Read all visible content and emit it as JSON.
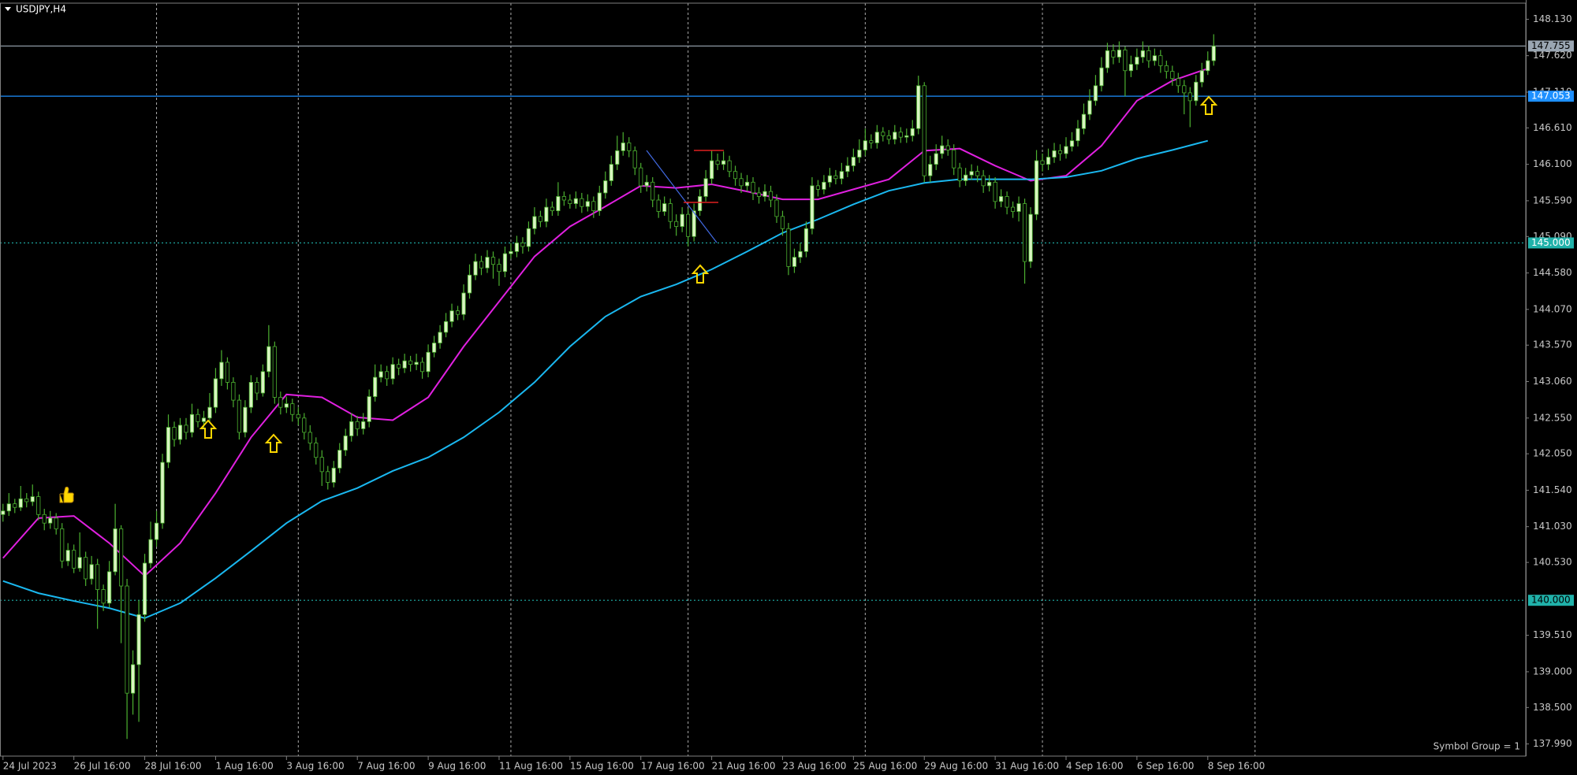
{
  "chart_data": {
    "type": "candlestick",
    "title": "USDJPY,H4",
    "footer": "Symbol Group = 1",
    "up_color": "#d8f5c0",
    "down_color": "#000000",
    "wick_color": "#4cb030",
    "ylim": [
      137.82,
      148.355
    ],
    "yticks": [
      {
        "value": 148.13,
        "label": "148.130"
      },
      {
        "value": 147.62,
        "label": "147.620"
      },
      {
        "value": 147.11,
        "label": "147.110"
      },
      {
        "value": 146.61,
        "label": "146.610"
      },
      {
        "value": 146.1,
        "label": "146.100"
      },
      {
        "value": 145.59,
        "label": "145.590"
      },
      {
        "value": 145.09,
        "label": "145.090"
      },
      {
        "value": 144.58,
        "label": "144.580"
      },
      {
        "value": 144.07,
        "label": "144.070"
      },
      {
        "value": 143.57,
        "label": "143.570"
      },
      {
        "value": 143.06,
        "label": "143.060"
      },
      {
        "value": 142.55,
        "label": "142.550"
      },
      {
        "value": 142.05,
        "label": "142.050"
      },
      {
        "value": 141.54,
        "label": "141.540"
      },
      {
        "value": 141.03,
        "label": "141.030"
      },
      {
        "value": 140.53,
        "label": "140.530"
      },
      {
        "value": 139.51,
        "label": "139.510"
      },
      {
        "value": 139,
        "label": "139.000"
      },
      {
        "value": 138.5,
        "label": "138.500"
      },
      {
        "value": 137.99,
        "label": "137.990"
      }
    ],
    "xticks": [
      {
        "value": 0,
        "label": "24 Jul 2023"
      },
      {
        "value": 12,
        "label": "26 Jul 16:00"
      },
      {
        "value": 24,
        "label": "28 Jul 16:00"
      },
      {
        "value": 36,
        "label": "1 Aug 16:00"
      },
      {
        "value": 48,
        "label": "3 Aug 16:00"
      },
      {
        "value": 60,
        "label": "7 Aug 16:00"
      },
      {
        "value": 72,
        "label": "9 Aug 16:00"
      },
      {
        "value": 84,
        "label": "11 Aug 16:00"
      },
      {
        "value": 96,
        "label": "15 Aug 16:00"
      },
      {
        "value": 108,
        "label": "17 Aug 16:00"
      },
      {
        "value": 120,
        "label": "21 Aug 16:00"
      },
      {
        "value": 132,
        "label": "23 Aug 16:00"
      },
      {
        "value": 144,
        "label": "25 Aug 16:00"
      },
      {
        "value": 156,
        "label": "29 Aug 16:00"
      },
      {
        "value": 168,
        "label": "31 Aug 16:00"
      },
      {
        "value": 180,
        "label": "4 Sep 16:00"
      },
      {
        "value": 192,
        "label": "6 Sep 16:00"
      },
      {
        "value": 204,
        "label": "8 Sep 16:00"
      }
    ],
    "xgrid": [
      26,
      50,
      86,
      116,
      146,
      176,
      212
    ],
    "levels": [
      {
        "value": 147.755,
        "color": "#9aa6b2",
        "style": "solid",
        "text_color": "#000000"
      },
      {
        "value": 147.053,
        "color": "#1e90ff",
        "style": "solid",
        "text_color": "#ffffff"
      },
      {
        "value": 145,
        "label": "145.000",
        "color": "#20b2aa",
        "style": "dotted",
        "text_color": "#ffffff"
      },
      {
        "value": 140,
        "label": "140.000",
        "color": "#20b2aa",
        "style": "dotted",
        "text_color": "#000000"
      }
    ],
    "open": [
      141.2,
      141.25,
      141.35,
      141.3,
      141.42,
      141.38,
      141.45,
      141.2,
      141.08,
      141.15,
      141.0,
      140.55,
      140.7,
      140.45,
      140.6,
      140.3,
      140.5,
      140.15,
      139.96,
      140.4,
      141.0,
      140.2,
      138.7,
      139.1,
      139.8,
      140.52,
      140.85,
      141.08,
      141.93,
      142.42,
      142.25,
      142.45,
      142.35,
      142.6,
      142.5,
      142.55,
      142.7,
      143.1,
      143.33,
      143.05,
      142.8,
      142.35,
      142.7,
      143.05,
      142.9,
      143.2,
      143.55,
      142.84,
      142.7,
      142.75,
      142.6,
      142.55,
      142.35,
      142.2,
      142.0,
      141.8,
      141.65,
      141.85,
      142.1,
      142.3,
      142.5,
      142.4,
      142.5,
      142.85,
      143.12,
      143.2,
      143.1,
      143.3,
      143.25,
      143.35,
      143.3,
      143.33,
      143.2,
      143.47,
      143.6,
      143.75,
      143.9,
      144.05,
      144.0,
      144.3,
      144.55,
      144.74,
      144.65,
      144.8,
      144.7,
      144.6,
      144.85,
      144.88,
      145.0,
      144.95,
      145.2,
      145.37,
      145.3,
      145.5,
      145.45,
      145.65,
      145.6,
      145.55,
      145.62,
      145.51,
      145.58,
      145.45,
      145.7,
      145.87,
      146.1,
      146.29,
      146.4,
      146.29,
      146.05,
      145.8,
      145.85,
      145.6,
      145.44,
      145.55,
      145.3,
      145.23,
      145.4,
      145.09,
      145.45,
      145.65,
      145.9,
      146.15,
      146.1,
      146.15,
      146.0,
      145.9,
      145.8,
      145.85,
      145.7,
      145.65,
      145.72,
      145.6,
      145.37,
      145.2,
      144.67,
      144.8,
      144.88,
      145.2,
      145.8,
      145.75,
      145.85,
      145.94,
      145.9,
      146.0,
      146.08,
      146.2,
      146.3,
      146.43,
      146.4,
      146.55,
      146.5,
      146.45,
      146.55,
      146.48,
      146.5,
      146.6,
      147.2,
      145.94,
      146.1,
      146.25,
      146.36,
      146.3,
      146.05,
      145.87,
      145.95,
      146.0,
      145.94,
      145.8,
      145.85,
      145.58,
      145.65,
      145.5,
      145.44,
      145.55,
      144.74,
      145.4,
      146.15,
      146.1,
      146.2,
      146.29,
      146.25,
      146.35,
      146.43,
      146.6,
      146.8,
      146.99,
      147.2,
      147.45,
      147.69,
      147.6,
      147.7,
      147.41,
      147.5,
      147.6,
      147.69,
      147.55,
      147.62,
      147.48,
      147.4,
      147.3,
      147.2,
      147.1,
      146.99,
      147.25,
      147.41,
      147.55
    ],
    "high": [
      141.35,
      141.5,
      141.42,
      141.6,
      141.5,
      141.62,
      141.52,
      141.28,
      141.25,
      141.22,
      141.08,
      140.8,
      140.78,
      140.95,
      140.68,
      140.62,
      140.58,
      140.22,
      140.55,
      141.35,
      141.05,
      140.3,
      139.3,
      140.0,
      140.65,
      141.1,
      141.25,
      142.05,
      142.6,
      142.5,
      142.55,
      142.55,
      142.75,
      142.68,
      142.65,
      142.9,
      143.25,
      143.5,
      143.4,
      143.12,
      142.88,
      142.8,
      143.15,
      143.12,
      143.3,
      143.85,
      143.62,
      142.92,
      142.85,
      142.82,
      142.7,
      142.62,
      142.45,
      142.28,
      142.1,
      141.88,
      141.95,
      142.2,
      142.4,
      142.62,
      142.58,
      142.62,
      142.95,
      143.3,
      143.3,
      143.28,
      143.4,
      143.38,
      143.45,
      143.42,
      143.45,
      143.4,
      143.58,
      143.7,
      143.85,
      144.02,
      144.15,
      144.12,
      144.42,
      144.7,
      144.85,
      144.82,
      144.9,
      144.88,
      144.78,
      144.95,
      145.0,
      145.1,
      145.08,
      145.3,
      145.5,
      145.45,
      145.62,
      145.58,
      145.85,
      145.72,
      145.68,
      145.72,
      145.7,
      145.68,
      145.65,
      145.8,
      146.0,
      146.22,
      146.5,
      146.55,
      146.48,
      146.35,
      146.12,
      145.95,
      145.92,
      145.68,
      145.65,
      145.62,
      145.4,
      145.5,
      145.48,
      145.55,
      145.75,
      146.02,
      146.3,
      146.25,
      146.28,
      146.22,
      146.08,
      145.98,
      145.95,
      145.92,
      145.78,
      145.82,
      145.8,
      145.68,
      145.45,
      145.28,
      144.92,
      145.0,
      145.3,
      145.92,
      145.88,
      145.95,
      146.05,
      146.02,
      146.12,
      146.2,
      146.32,
      146.45,
      146.6,
      146.52,
      146.65,
      146.62,
      146.58,
      146.65,
      146.62,
      146.6,
      146.72,
      147.34,
      147.25,
      146.22,
      146.38,
      146.5,
      146.45,
      146.38,
      146.12,
      146.05,
      146.1,
      146.08,
      146.02,
      145.95,
      145.92,
      145.75,
      145.72,
      145.58,
      145.65,
      145.62,
      145.5,
      146.3,
      146.25,
      146.32,
      146.4,
      146.38,
      146.48,
      146.55,
      146.72,
      146.95,
      147.15,
      147.35,
      147.6,
      147.8,
      147.78,
      147.82,
      147.75,
      147.62,
      147.72,
      147.82,
      147.76,
      147.72,
      147.7,
      147.55,
      147.48,
      147.38,
      147.28,
      147.18,
      147.35,
      147.52,
      147.68,
      147.92
    ],
    "low": [
      141.1,
      141.18,
      141.22,
      141.25,
      141.3,
      141.32,
      141.12,
      140.98,
      141.0,
      140.92,
      140.45,
      140.48,
      140.38,
      140.4,
      140.2,
      140.22,
      139.6,
      139.85,
      139.9,
      140.35,
      139.4,
      138.06,
      138.4,
      138.3,
      139.7,
      140.45,
      140.75,
      141.0,
      141.85,
      142.15,
      142.18,
      142.25,
      142.28,
      142.42,
      142.4,
      142.48,
      142.62,
      143.0,
      142.95,
      142.7,
      142.25,
      142.28,
      142.62,
      142.8,
      142.85,
      143.12,
      142.75,
      142.6,
      142.62,
      142.5,
      142.45,
      142.25,
      142.1,
      141.9,
      141.6,
      141.55,
      141.58,
      141.78,
      142.02,
      142.22,
      142.3,
      142.32,
      142.42,
      142.78,
      143.05,
      143.0,
      143.02,
      143.15,
      143.18,
      143.2,
      143.22,
      143.1,
      143.12,
      143.4,
      143.52,
      143.68,
      143.82,
      143.92,
      143.92,
      144.22,
      144.48,
      144.55,
      144.58,
      144.5,
      144.4,
      144.52,
      144.78,
      144.8,
      144.85,
      144.88,
      145.12,
      145.22,
      145.22,
      145.38,
      145.38,
      145.52,
      145.48,
      145.48,
      145.42,
      145.44,
      145.35,
      145.38,
      145.62,
      145.8,
      146.02,
      146.22,
      146.2,
      145.95,
      145.7,
      145.72,
      145.5,
      145.35,
      145.38,
      145.2,
      145.1,
      145.15,
      144.95,
      145.02,
      145.38,
      145.58,
      145.82,
      146.02,
      146.02,
      145.92,
      145.8,
      145.7,
      145.72,
      145.6,
      145.55,
      145.58,
      145.5,
      145.28,
      145.1,
      144.55,
      144.58,
      144.72,
      144.8,
      145.12,
      145.65,
      145.68,
      145.78,
      145.82,
      145.82,
      145.92,
      146.0,
      146.12,
      146.22,
      146.32,
      146.32,
      146.42,
      146.38,
      146.38,
      146.4,
      146.4,
      146.42,
      146.52,
      145.85,
      145.85,
      146.02,
      146.18,
      146.22,
      145.95,
      145.78,
      145.8,
      145.88,
      145.85,
      145.7,
      145.72,
      145.48,
      145.5,
      145.4,
      145.35,
      145.3,
      144.43,
      144.65,
      145.32,
      146.0,
      146.02,
      146.12,
      146.15,
      146.18,
      146.28,
      146.35,
      146.52,
      146.72,
      146.92,
      147.12,
      147.38,
      147.5,
      147.52,
      147.05,
      147.32,
      147.42,
      147.52,
      147.45,
      147.48,
      147.38,
      147.3,
      147.2,
      147.1,
      146.8,
      146.62,
      146.92,
      147.18,
      147.35,
      147.48
    ],
    "close": [
      141.25,
      141.35,
      141.3,
      141.42,
      141.38,
      141.45,
      141.2,
      141.08,
      141.15,
      141.0,
      140.55,
      140.7,
      140.45,
      140.6,
      140.3,
      140.5,
      140.15,
      139.96,
      140.4,
      141.0,
      140.2,
      138.7,
      139.1,
      139.8,
      140.52,
      140.85,
      141.08,
      141.93,
      142.42,
      142.25,
      142.45,
      142.35,
      142.6,
      142.5,
      142.55,
      142.7,
      143.1,
      143.33,
      143.05,
      142.8,
      142.35,
      142.7,
      143.05,
      142.9,
      143.2,
      143.55,
      142.84,
      142.7,
      142.75,
      142.6,
      142.55,
      142.35,
      142.2,
      142.0,
      141.8,
      141.65,
      141.85,
      142.1,
      142.3,
      142.5,
      142.4,
      142.5,
      142.85,
      143.12,
      143.2,
      143.1,
      143.3,
      143.25,
      143.35,
      143.3,
      143.33,
      143.2,
      143.47,
      143.6,
      143.75,
      143.9,
      144.05,
      144.0,
      144.3,
      144.55,
      144.74,
      144.65,
      144.8,
      144.7,
      144.6,
      144.85,
      144.88,
      145.0,
      144.95,
      145.2,
      145.37,
      145.3,
      145.5,
      145.45,
      145.65,
      145.6,
      145.55,
      145.62,
      145.51,
      145.58,
      145.45,
      145.7,
      145.87,
      146.1,
      146.29,
      146.4,
      146.29,
      146.05,
      145.8,
      145.85,
      145.6,
      145.44,
      145.55,
      145.3,
      145.23,
      145.4,
      145.09,
      145.45,
      145.65,
      145.9,
      146.15,
      146.1,
      146.15,
      146.0,
      145.9,
      145.8,
      145.85,
      145.7,
      145.65,
      145.72,
      145.6,
      145.37,
      145.2,
      144.67,
      144.8,
      144.88,
      145.2,
      145.8,
      145.75,
      145.85,
      145.94,
      145.9,
      146.0,
      146.08,
      146.2,
      146.3,
      146.43,
      146.4,
      146.55,
      146.5,
      146.45,
      146.55,
      146.48,
      146.5,
      146.6,
      147.2,
      145.94,
      146.1,
      146.25,
      146.36,
      146.3,
      146.05,
      145.87,
      145.95,
      146.0,
      145.94,
      145.8,
      145.85,
      145.58,
      145.65,
      145.5,
      145.44,
      145.55,
      144.74,
      145.4,
      146.15,
      146.1,
      146.2,
      146.29,
      146.25,
      146.35,
      146.43,
      146.6,
      146.8,
      146.99,
      147.2,
      147.45,
      147.69,
      147.6,
      147.7,
      147.41,
      147.5,
      147.6,
      147.69,
      147.55,
      147.62,
      147.48,
      147.4,
      147.3,
      147.2,
      147.1,
      146.99,
      147.25,
      147.41,
      147.55,
      147.755
    ],
    "indicators": [
      {
        "color": "#e020e0",
        "x": [
          0,
          6,
          12,
          18,
          24,
          30,
          36,
          42,
          48,
          54,
          60,
          66,
          72,
          78,
          84,
          90,
          96,
          102,
          108,
          114,
          120,
          126,
          132,
          138,
          144,
          150,
          156,
          162,
          168,
          174,
          180,
          186,
          192,
          198,
          204
        ],
        "values": [
          140.59,
          141.15,
          141.18,
          140.8,
          140.34,
          140.8,
          141.5,
          142.28,
          142.88,
          142.84,
          142.56,
          142.52,
          142.84,
          143.55,
          144.18,
          144.81,
          145.23,
          145.51,
          145.8,
          145.77,
          145.82,
          145.72,
          145.61,
          145.61,
          145.75,
          145.89,
          146.29,
          146.32,
          146.08,
          145.87,
          145.94,
          146.36,
          146.99,
          147.27,
          147.44
        ]
      },
      {
        "color": "#1ab8f0",
        "x": [
          0,
          6,
          12,
          18,
          24,
          30,
          36,
          42,
          48,
          54,
          60,
          66,
          72,
          78,
          84,
          90,
          96,
          102,
          108,
          114,
          120,
          126,
          132,
          138,
          144,
          150,
          156,
          162,
          168,
          174,
          180,
          186,
          192,
          198,
          204
        ],
        "values": [
          140.27,
          140.1,
          139.99,
          139.89,
          139.75,
          139.96,
          140.31,
          140.69,
          141.08,
          141.39,
          141.57,
          141.81,
          142.0,
          142.28,
          142.63,
          143.05,
          143.55,
          143.97,
          144.25,
          144.42,
          144.63,
          144.88,
          145.14,
          145.33,
          145.54,
          145.73,
          145.84,
          145.89,
          145.89,
          145.89,
          145.92,
          146.01,
          146.18,
          146.3,
          146.43
        ]
      }
    ]
  }
}
